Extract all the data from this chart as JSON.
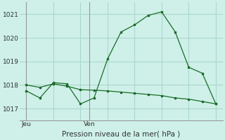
{
  "title": "Pression niveau de la mer( hPa )",
  "background_color": "#cef0e8",
  "grid_color": "#aad8cc",
  "line_color": "#1a6b2a",
  "ylim": [
    1016.5,
    1021.5
  ],
  "yticks": [
    1017,
    1018,
    1019,
    1020,
    1021
  ],
  "line1_x": [
    0,
    1,
    2,
    3,
    4,
    5,
    6,
    7,
    8,
    9,
    10,
    11,
    12,
    13,
    14
  ],
  "line1_y": [
    1017.75,
    1017.45,
    1018.1,
    1018.05,
    1017.2,
    1017.45,
    1019.1,
    1020.25,
    1020.55,
    1020.95,
    1021.1,
    1020.25,
    1018.75,
    1018.5,
    1017.2
  ],
  "line2_x": [
    0,
    1,
    2,
    3,
    4,
    5,
    6,
    7,
    8,
    9,
    10,
    11,
    12,
    13,
    14
  ],
  "line2_y": [
    1018.0,
    1017.9,
    1018.05,
    1017.95,
    1017.8,
    1017.78,
    1017.75,
    1017.7,
    1017.65,
    1017.6,
    1017.55,
    1017.45,
    1017.4,
    1017.3,
    1017.2
  ],
  "xtick_positions": [
    0,
    4.67
  ],
  "xtick_labels": [
    "Jeu",
    "Ven"
  ],
  "vline_positions": [
    0,
    4.67
  ],
  "xlim": [
    -0.5,
    14.5
  ],
  "grid_xticks": [
    0,
    2,
    4,
    6,
    8,
    10,
    12,
    14
  ]
}
